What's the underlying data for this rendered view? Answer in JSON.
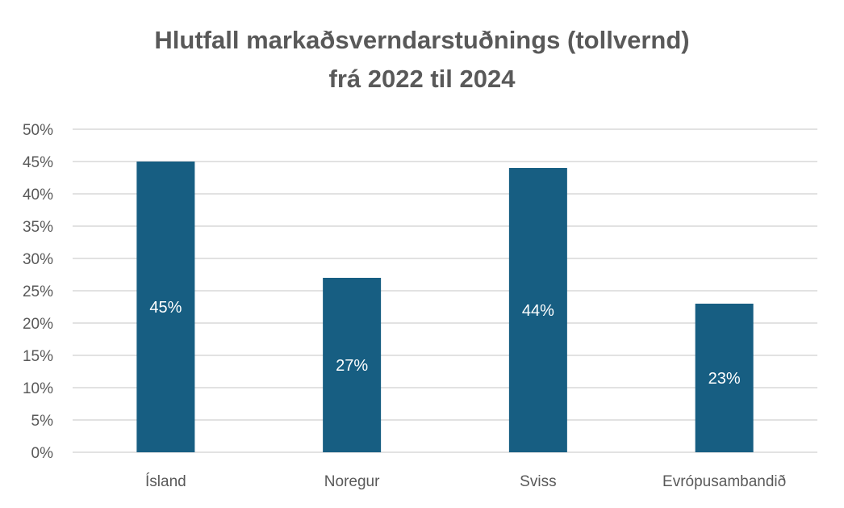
{
  "chart_data": {
    "type": "bar",
    "title_lines": [
      "Hlutfall markaðsverndarstuðnings (tollvernd)",
      "frá 2022 til 2024"
    ],
    "categories": [
      "Ísland",
      "Noregur",
      "Sviss",
      "Evrópusambandið"
    ],
    "values": [
      45,
      27,
      44,
      23
    ],
    "data_labels": [
      "45%",
      "27%",
      "44%",
      "23%"
    ],
    "y_ticks": [
      "0%",
      "5%",
      "10%",
      "15%",
      "20%",
      "25%",
      "30%",
      "35%",
      "40%",
      "45%",
      "50%"
    ],
    "ylim": [
      0,
      50
    ],
    "grid": true,
    "legend": false,
    "bar_color": "#175e82",
    "grid_color": "#d9d9d9",
    "text_color": "#595959",
    "label_color": "#ffffff"
  }
}
